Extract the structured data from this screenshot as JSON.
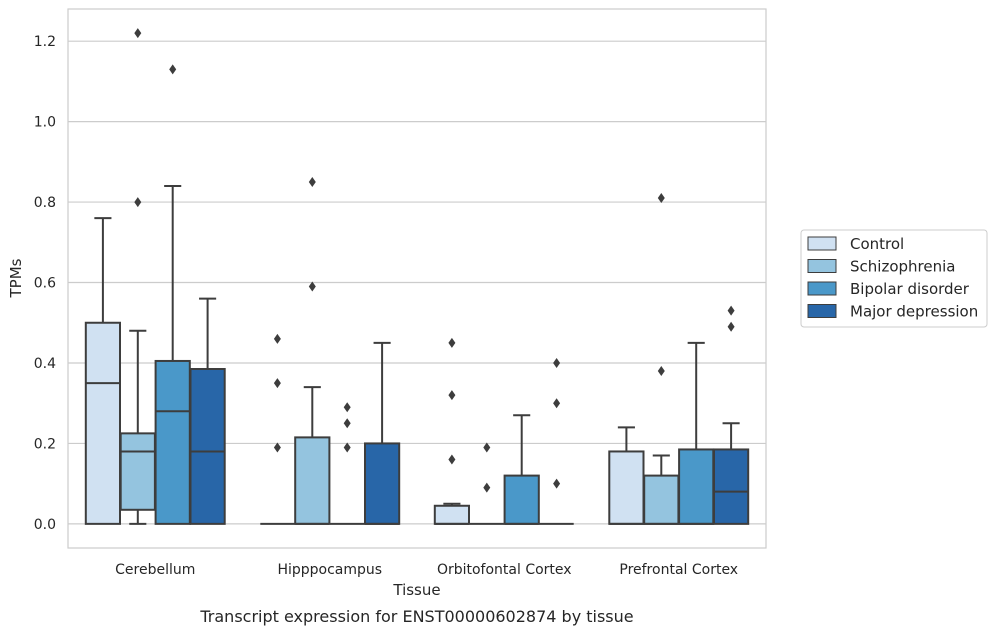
{
  "chart_data": {
    "type": "box",
    "xlabel": "Tissue",
    "ylabel": "TPMs",
    "caption": "Transcript expression for ENST00000602874 by tissue",
    "ylim": [
      -0.06,
      1.28
    ],
    "yticks": [
      0.0,
      0.2,
      0.4,
      0.6,
      0.8,
      1.0,
      1.2
    ],
    "ytick_labels": [
      "0.0",
      "0.2",
      "0.4",
      "0.6",
      "0.8",
      "1.0",
      "1.2"
    ],
    "grid": true,
    "legend_position": "right",
    "categories": [
      "Cerebellum",
      "Hipppocampus",
      "Orbitofontal Cortex",
      "Prefrontal Cortex"
    ],
    "series": [
      {
        "name": "Control",
        "color": "#d0e1f2",
        "boxes": [
          {
            "min": 0.0,
            "q1": 0.0,
            "median": 0.35,
            "q3": 0.5,
            "max": 0.76,
            "outliers": []
          },
          {
            "min": 0.0,
            "q1": 0.0,
            "median": 0.0,
            "q3": 0.0,
            "max": 0.0,
            "outliers": [
              0.19,
              0.35,
              0.46
            ]
          },
          {
            "min": 0.0,
            "q1": 0.0,
            "median": 0.0,
            "q3": 0.045,
            "max": 0.05,
            "outliers": [
              0.16,
              0.32,
              0.45
            ]
          },
          {
            "min": 0.0,
            "q1": 0.0,
            "median": 0.0,
            "q3": 0.18,
            "max": 0.24,
            "outliers": []
          }
        ]
      },
      {
        "name": "Schizophrenia",
        "color": "#94c4df",
        "boxes": [
          {
            "min": 0.0,
            "q1": 0.035,
            "median": 0.18,
            "q3": 0.225,
            "max": 0.48,
            "outliers": [
              0.8,
              1.22
            ]
          },
          {
            "min": 0.0,
            "q1": 0.0,
            "median": 0.0,
            "q3": 0.215,
            "max": 0.34,
            "outliers": [
              0.59,
              0.85
            ]
          },
          {
            "min": 0.0,
            "q1": 0.0,
            "median": 0.0,
            "q3": 0.0,
            "max": 0.0,
            "outliers": [
              0.09,
              0.19
            ]
          },
          {
            "min": 0.0,
            "q1": 0.0,
            "median": 0.0,
            "q3": 0.12,
            "max": 0.17,
            "outliers": [
              0.38,
              0.81
            ]
          }
        ]
      },
      {
        "name": "Bipolar disorder",
        "color": "#4a98c9",
        "boxes": [
          {
            "min": 0.0,
            "q1": 0.0,
            "median": 0.28,
            "q3": 0.405,
            "max": 0.84,
            "outliers": [
              1.13
            ]
          },
          {
            "min": 0.0,
            "q1": 0.0,
            "median": 0.0,
            "q3": 0.0,
            "max": 0.0,
            "outliers": [
              0.19,
              0.25,
              0.29
            ]
          },
          {
            "min": 0.0,
            "q1": 0.0,
            "median": 0.0,
            "q3": 0.12,
            "max": 0.27,
            "outliers": []
          },
          {
            "min": 0.0,
            "q1": 0.0,
            "median": 0.0,
            "q3": 0.185,
            "max": 0.45,
            "outliers": []
          }
        ]
      },
      {
        "name": "Major depression",
        "color": "#2866a8",
        "boxes": [
          {
            "min": 0.0,
            "q1": 0.0,
            "median": 0.18,
            "q3": 0.385,
            "max": 0.56,
            "outliers": []
          },
          {
            "min": 0.0,
            "q1": 0.0,
            "median": 0.0,
            "q3": 0.2,
            "max": 0.45,
            "outliers": []
          },
          {
            "min": 0.0,
            "q1": 0.0,
            "median": 0.0,
            "q3": 0.0,
            "max": 0.0,
            "outliers": [
              0.1,
              0.3,
              0.4
            ]
          },
          {
            "min": 0.0,
            "q1": 0.0,
            "median": 0.08,
            "q3": 0.185,
            "max": 0.25,
            "outliers": [
              0.49,
              0.53
            ]
          }
        ]
      }
    ]
  }
}
